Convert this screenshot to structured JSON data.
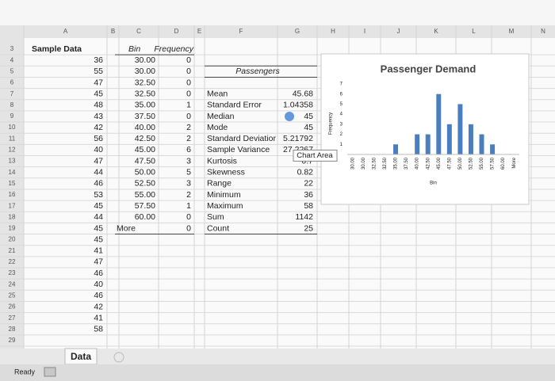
{
  "column_headers": [
    "A",
    "B",
    "C",
    "D",
    "E",
    "F",
    "G",
    "H",
    "I",
    "J",
    "K",
    "L",
    "M",
    "N"
  ],
  "row_numbers": [
    3,
    4,
    5,
    6,
    7,
    8,
    9,
    10,
    11,
    12,
    13,
    14,
    15,
    16,
    17,
    18,
    19,
    20,
    21,
    22,
    23,
    24,
    25,
    26,
    27,
    28,
    29
  ],
  "sample_data": {
    "header": "Sample Data",
    "values": [
      36,
      55,
      47,
      45,
      48,
      43,
      42,
      56,
      40,
      47,
      44,
      46,
      53,
      45,
      44,
      45,
      45,
      41,
      47,
      46,
      40,
      46,
      42,
      41,
      58
    ]
  },
  "bins": {
    "header": "Bin",
    "frequency_header": "Frequency",
    "labels": [
      "30.00",
      "30.00",
      "32.50",
      "32.50",
      "35.00",
      "37.50",
      "40.00",
      "42.50",
      "45.00",
      "47.50",
      "50.00",
      "52.50",
      "55.00",
      "57.50",
      "60.00",
      "More"
    ],
    "frequency": [
      0,
      0,
      0,
      0,
      1,
      0,
      2,
      2,
      6,
      3,
      5,
      3,
      2,
      1,
      0,
      0
    ]
  },
  "statistics": {
    "title": "Passengers",
    "rows": [
      [
        "Mean",
        45.68
      ],
      [
        "Standard Error",
        1.04358
      ],
      [
        "Median",
        45
      ],
      [
        "Mode",
        45
      ],
      [
        "Standard Deviatior",
        5.21792
      ],
      [
        "Sample Variance",
        27.2267
      ],
      [
        "Kurtosis",
        0.7
      ],
      [
        "Skewness",
        0.82
      ],
      [
        "Range",
        22
      ],
      [
        "Minimum",
        36
      ],
      [
        "Maximum",
        58
      ],
      [
        "Sum",
        1142
      ],
      [
        "Count",
        25
      ]
    ]
  },
  "chart": {
    "type": "bar",
    "title": "Passenger Demand",
    "y_label": "Frequency",
    "x_label": "Bin",
    "categories": [
      "30.00",
      "30.00",
      "32.50",
      "32.50",
      "35.00",
      "37.50",
      "40.00",
      "42.50",
      "45.00",
      "47.50",
      "50.00",
      "52.50",
      "55.00",
      "57.50",
      "60.00",
      "More"
    ],
    "values": [
      0,
      0,
      0,
      0,
      1,
      0,
      2,
      2,
      6,
      3,
      5,
      3,
      2,
      1,
      0,
      0
    ],
    "ylim": [
      0,
      7
    ],
    "yticks": [
      1,
      2,
      3,
      4,
      5,
      6,
      7
    ],
    "color": "#4a7ebf"
  },
  "tooltip": "Chart Area",
  "sheet_tab": "Data",
  "status": "Ready"
}
